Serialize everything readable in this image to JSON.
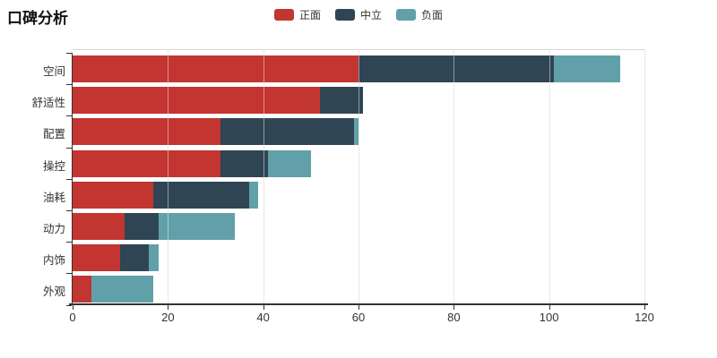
{
  "chart_data": {
    "type": "bar",
    "orientation": "horizontal",
    "stacked": true,
    "title": "口碑分析",
    "categories": [
      "空间",
      "舒适性",
      "配置",
      "操控",
      "油耗",
      "动力",
      "内饰",
      "外观"
    ],
    "series": [
      {
        "name": "正面",
        "color": "#c23531",
        "values": [
          60,
          52,
          31,
          31,
          17,
          11,
          10,
          4
        ]
      },
      {
        "name": "中立",
        "color": "#2f4554",
        "values": [
          41,
          9,
          28,
          10,
          20,
          7,
          6,
          0
        ]
      },
      {
        "name": "负面",
        "color": "#61a0a8",
        "values": [
          14,
          0,
          1,
          9,
          2,
          16,
          2,
          13
        ]
      }
    ],
    "xlim": [
      0,
      120
    ],
    "xticks": [
      0,
      20,
      40,
      60,
      80,
      100,
      120
    ],
    "grid": true,
    "legend_position": "top-center",
    "axis_color": "#333333",
    "grid_color": "#d6d6d6"
  }
}
